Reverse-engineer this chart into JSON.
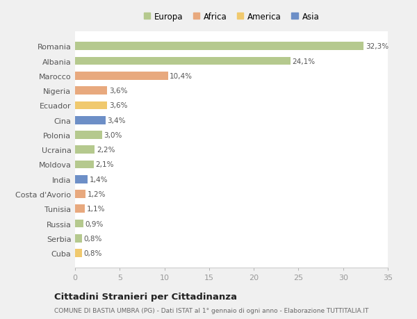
{
  "countries": [
    "Romania",
    "Albania",
    "Marocco",
    "Nigeria",
    "Ecuador",
    "Cina",
    "Polonia",
    "Ucraina",
    "Moldova",
    "India",
    "Costa d'Avorio",
    "Tunisia",
    "Russia",
    "Serbia",
    "Cuba"
  ],
  "values": [
    32.3,
    24.1,
    10.4,
    3.6,
    3.6,
    3.4,
    3.0,
    2.2,
    2.1,
    1.4,
    1.2,
    1.1,
    0.9,
    0.8,
    0.8
  ],
  "labels": [
    "32,3%",
    "24,1%",
    "10,4%",
    "3,6%",
    "3,6%",
    "3,4%",
    "3,0%",
    "2,2%",
    "2,1%",
    "1,4%",
    "1,2%",
    "1,1%",
    "0,9%",
    "0,8%",
    "0,8%"
  ],
  "colors": [
    "#b5c98e",
    "#b5c98e",
    "#e8a97e",
    "#e8a97e",
    "#f0c96e",
    "#6d8fc7",
    "#b5c98e",
    "#b5c98e",
    "#b5c98e",
    "#6d8fc7",
    "#e8a97e",
    "#e8a97e",
    "#b5c98e",
    "#b5c98e",
    "#f0c96e"
  ],
  "legend": [
    {
      "label": "Europa",
      "color": "#b5c98e"
    },
    {
      "label": "Africa",
      "color": "#e8a97e"
    },
    {
      "label": "America",
      "color": "#f0c96e"
    },
    {
      "label": "Asia",
      "color": "#6d8fc7"
    }
  ],
  "title": "Cittadini Stranieri per Cittadinanza",
  "subtitle": "COMUNE DI BASTIA UMBRA (PG) - Dati ISTAT al 1° gennaio di ogni anno - Elaborazione TUTTITALIA.IT",
  "xlim": [
    0,
    35
  ],
  "xticks": [
    0,
    5,
    10,
    15,
    20,
    25,
    30,
    35
  ],
  "bg_color": "#f0f0f0",
  "plot_bg_color": "#ffffff",
  "grid_color": "#ffffff",
  "bar_height": 0.55
}
